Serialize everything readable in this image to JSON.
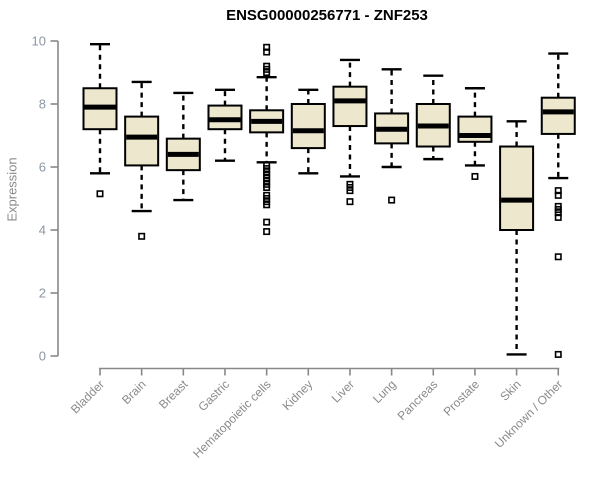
{
  "title": "ENSG00000256771 - ZNF253",
  "colors": {
    "background": "#ffffff",
    "box_fill": "#ede7ce",
    "box_stroke": "#000000",
    "median": "#000000",
    "whisker": "#000000",
    "outlier": "#000000",
    "axis_line": "#888888",
    "y_tick_label": "#8c96a3",
    "x_tick_label": "#8a8a8a",
    "axis_title": "#8a8a8a",
    "title": "#000000"
  },
  "chart_data": {
    "type": "boxplot",
    "title": "ENSG00000256771 - ZNF253",
    "xlabel": "",
    "ylabel": "Expression",
    "ylim": [
      0,
      10
    ],
    "yticks": [
      0,
      2,
      4,
      6,
      8,
      10
    ],
    "grid": false,
    "legend": false,
    "categories": [
      "Bladder",
      "Brain",
      "Breast",
      "Gastric",
      "Hematopoietic cells",
      "Kidney",
      "Liver",
      "Lung",
      "Pancreas",
      "Prostate",
      "Skin",
      "Unknown / Other"
    ],
    "series": [
      {
        "category": "Bladder",
        "whisker_low": 5.8,
        "q1": 7.2,
        "median": 7.9,
        "q3": 8.5,
        "whisker_high": 9.9,
        "outliers": [
          5.15
        ]
      },
      {
        "category": "Brain",
        "whisker_low": 4.6,
        "q1": 6.05,
        "median": 6.95,
        "q3": 7.6,
        "whisker_high": 8.7,
        "outliers": [
          3.8
        ]
      },
      {
        "category": "Breast",
        "whisker_low": 4.95,
        "q1": 5.9,
        "median": 6.4,
        "q3": 6.9,
        "whisker_high": 8.35,
        "outliers": []
      },
      {
        "category": "Gastric",
        "whisker_low": 6.2,
        "q1": 7.2,
        "median": 7.5,
        "q3": 7.95,
        "whisker_high": 8.45,
        "outliers": []
      },
      {
        "category": "Hematopoietic cells",
        "whisker_low": 6.15,
        "q1": 7.1,
        "median": 7.45,
        "q3": 7.8,
        "whisker_high": 8.85,
        "outliers": [
          9.8,
          9.65,
          9.2,
          9.1,
          9.0,
          6.05,
          5.95,
          5.85,
          5.75,
          5.65,
          5.55,
          5.45,
          5.35,
          5.1,
          5.0,
          4.9,
          4.8,
          4.25,
          3.95
        ]
      },
      {
        "category": "Kidney",
        "whisker_low": 5.8,
        "q1": 6.6,
        "median": 7.15,
        "q3": 8.0,
        "whisker_high": 8.45,
        "outliers": []
      },
      {
        "category": "Liver",
        "whisker_low": 5.7,
        "q1": 7.3,
        "median": 8.1,
        "q3": 8.55,
        "whisker_high": 9.4,
        "outliers": [
          5.45,
          5.35,
          5.25,
          4.9
        ]
      },
      {
        "category": "Lung",
        "whisker_low": 6.0,
        "q1": 6.75,
        "median": 7.2,
        "q3": 7.7,
        "whisker_high": 9.1,
        "outliers": [
          4.95
        ]
      },
      {
        "category": "Pancreas",
        "whisker_low": 6.25,
        "q1": 6.65,
        "median": 7.3,
        "q3": 8.0,
        "whisker_high": 8.9,
        "outliers": []
      },
      {
        "category": "Prostate",
        "whisker_low": 6.05,
        "q1": 6.8,
        "median": 7.0,
        "q3": 7.6,
        "whisker_high": 8.5,
        "outliers": [
          5.7
        ]
      },
      {
        "category": "Skin",
        "whisker_low": 0.05,
        "q1": 4.0,
        "median": 4.95,
        "q3": 6.65,
        "whisker_high": 7.45,
        "outliers": []
      },
      {
        "category": "Unknown / Other",
        "whisker_low": 5.65,
        "q1": 7.05,
        "median": 7.75,
        "q3": 8.2,
        "whisker_high": 9.6,
        "outliers": [
          5.25,
          5.1,
          4.75,
          4.65,
          4.55,
          4.4,
          3.15,
          0.05
        ]
      }
    ]
  }
}
